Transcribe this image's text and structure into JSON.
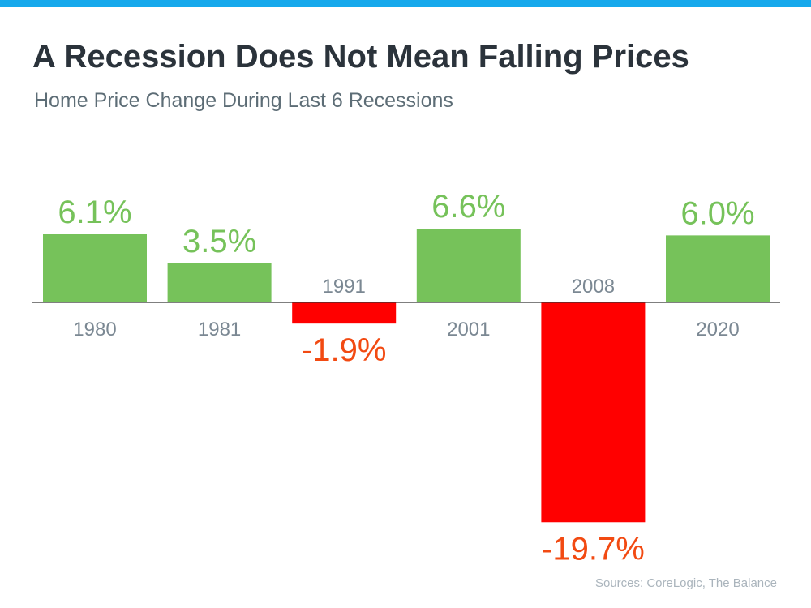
{
  "colors": {
    "top_bar": "#16a9ec",
    "positive": "#76c25a",
    "negative": "#ff0000",
    "negative_label": "#f24a12",
    "year_label": "#7b8893",
    "axis": "#333333"
  },
  "header": {
    "title": "A Recession Does Not Mean Falling Prices",
    "subtitle": "Home Price Change During Last 6 Recessions"
  },
  "footer": {
    "source": "Sources: CoreLogic, The Balance"
  },
  "chart_data": {
    "type": "bar",
    "title": "A Recession Does Not Mean Falling Prices",
    "subtitle": "Home Price Change During Last 6 Recessions",
    "categories": [
      "1980",
      "1981",
      "1991",
      "2001",
      "2008",
      "2020"
    ],
    "values": [
      6.1,
      3.5,
      -1.9,
      6.6,
      -19.7,
      6.0
    ],
    "data_labels": [
      "6.1%",
      "3.5%",
      "-1.9%",
      "6.6%",
      "-19.7%",
      "6.0%"
    ],
    "xlabel": "",
    "ylabel": "",
    "ylim": [
      -20,
      7
    ],
    "grid": false
  }
}
